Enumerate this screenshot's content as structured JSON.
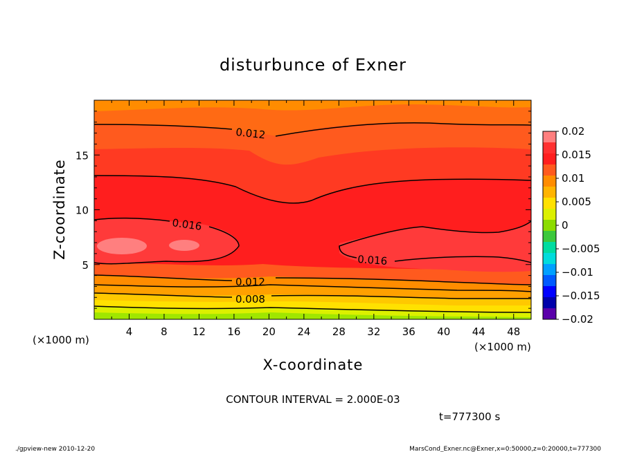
{
  "chart_data": {
    "type": "contour",
    "title": "disturbunce of Exner",
    "xlabel": "X-coordinate",
    "ylabel": "Z-coordinate",
    "x_unit": "(×1000 m)",
    "y_unit": "(×1000 m)",
    "xlim": [
      0,
      50
    ],
    "ylim": [
      0,
      20
    ],
    "x_ticks": [
      4,
      8,
      12,
      16,
      20,
      24,
      28,
      32,
      36,
      40,
      44,
      48
    ],
    "y_ticks": [
      5,
      10,
      15
    ],
    "contour_interval": "CONTOUR INTERVAL = 2.000E-03",
    "time_label": "t=777300 s",
    "contour_labels": [
      {
        "text": "0.012",
        "x": 19.5,
        "z": 17.2
      },
      {
        "text": "0.016",
        "x": 11.5,
        "z": 8.6
      },
      {
        "text": "0.016",
        "x": 31.5,
        "z": 5.3
      },
      {
        "text": "0.012",
        "x": 18.5,
        "z": 3.4
      },
      {
        "text": "0.008",
        "x": 18.5,
        "z": 1.9
      }
    ],
    "colorbar": {
      "ticks": [
        "0.02",
        "0.015",
        "0.01",
        "0.005",
        "0",
        "−0.005",
        "−0.01",
        "−0.015",
        "−0.02"
      ],
      "colors": [
        "#ff7f7f",
        "#ff3030",
        "#ff1e1e",
        "#ff5a1e",
        "#ff8c00",
        "#ffb400",
        "#ffe100",
        "#dcf000",
        "#8cdc00",
        "#3cc83c",
        "#00dca0",
        "#00dcdc",
        "#00a0ff",
        "#005aff",
        "#0000ff",
        "#0000aa",
        "#5a00aa"
      ]
    }
  },
  "footer": {
    "left": "./gpview-new   2010-12-20",
    "right": "MarsCond_Exner.nc@Exner,x=0:50000,z=0:20000,t=777300"
  }
}
